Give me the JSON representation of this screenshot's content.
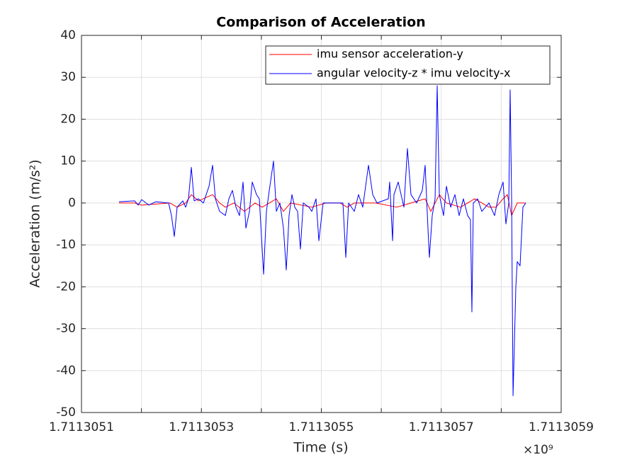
{
  "chart_data": {
    "type": "line",
    "title": "Comparison of Acceleration",
    "xlabel": "Time (s)",
    "ylabel": "Acceleration (m/s²)",
    "x_exponent": "×10⁹",
    "xlim": [
      1.7113051,
      1.7113059
    ],
    "xticks": [
      1.7113051,
      {
        "value": 1.7113052
      },
      1.7113053,
      {
        "value": 1.7113054
      },
      1.7113055,
      {
        "value": 1.7113056
      },
      1.7113057,
      {
        "value": 1.7113058
      },
      1.7113059
    ],
    "ylim": [
      -50,
      40
    ],
    "yticks": [
      -50,
      -40,
      -30,
      -20,
      -10,
      0,
      10,
      20,
      30,
      40
    ],
    "grid": true,
    "legend": "upper right",
    "series": [
      {
        "name": "imu sensor acceleration-y",
        "color": "#ff0000",
        "x": [
          1.7113051626,
          1.7113051886,
          1.7113052004,
          1.7113052477,
          1.7113052595,
          1.7113052737,
          1.7113052832,
          1.711305295,
          1.7113053186,
          1.7113053304,
          1.7113053399,
          1.7113053541,
          1.7113053718,
          1.7113053895,
          1.7113054013,
          1.7113054132,
          1.711305425,
          1.7113054368,
          1.7113054486,
          1.7113054841,
          1.7113055077,
          1.7113055313,
          1.7113055431,
          1.711305555,
          1.7113055904,
          1.7113056259,
          1.7113056495,
          1.7113056731,
          1.7113056826,
          1.7113056968,
          1.7113057086,
          1.7113057322,
          1.7113057558,
          1.7113057795,
          1.7113057913,
          1.7113058031,
          1.7113058102,
          1.7113058173,
          1.7113058267,
          1.7113058409
        ],
        "values": [
          0,
          0,
          -0.5,
          0,
          -1,
          0,
          2,
          0.5,
          2,
          0,
          -1,
          0,
          -2,
          0,
          -1,
          0,
          1,
          -2,
          0,
          -1,
          0,
          0,
          -1,
          0,
          0,
          -1,
          0,
          1,
          -2,
          2,
          0,
          -1,
          1,
          -1,
          -1,
          1,
          2,
          -3,
          0,
          0
        ]
      },
      {
        "name": "angular velocity-z * imu velocity-x",
        "color": "#0000ff",
        "x": [
          1.7113051626,
          1.7113051886,
          1.7113051945,
          1.7113052004,
          1.7113052123,
          1.7113052241,
          1.7113052453,
          1.7113052501,
          1.7113052548,
          1.7113052595,
          1.711305269,
          1.7113052737,
          1.7113052784,
          1.7113052832,
          1.7113052879,
          1.711305295,
          1.7113053033,
          1.7113053127,
          1.7113053186,
          1.7113053233,
          1.7113053304,
          1.7113053399,
          1.7113053458,
          1.7113053517,
          1.7113053576,
          1.7113053635,
          1.7113053694,
          1.7113053742,
          1.7113053801,
          1.7113053848,
          1.7113053919,
          1.7113053966,
          1.7113054037,
          1.7113054084,
          1.7113054132,
          1.7113054202,
          1.711305425,
          1.7113054309,
          1.7113054368,
          1.7113054415,
          1.7113054462,
          1.711305451,
          1.7113054557,
          1.7113054604,
          1.7113054651,
          1.7113054699,
          1.7113054793,
          1.7113054841,
          1.7113054911,
          1.7113054959,
          1.711305503,
          1.711305536,
          1.7113055408,
          1.7113055455,
          1.711305555,
          1.711305562,
          1.7113055691,
          1.7113055786,
          1.7113055857,
          1.7113055928,
          1.7113056117,
          1.711305614,
          1.7113056188,
          1.7113056211,
          1.7113056282,
          1.7113056377,
          1.7113056436,
          1.7113056495,
          1.7113056589,
          1.7113056684,
          1.7113056731,
          1.7113056778,
          1.7113056802,
          1.7113056849,
          1.7113056897,
          1.7113056932,
          1.7113056968,
          1.7113057038,
          1.7113057086,
          1.7113057157,
          1.7113057228,
          1.7113057298,
          1.7113057369,
          1.711305744,
          1.7113057487,
          1.7113057511,
          1.7113057535,
          1.7113057606,
          1.7113057677,
          1.7113057795,
          1.7113057889,
          1.711305796,
          1.7113058031,
          1.7113058078,
          1.7113058126,
          1.7113058149,
          1.7113058173,
          1.7113058197,
          1.7113058244,
          1.7113058267,
          1.7113058314,
          1.7113058362,
          1.7113058409
        ],
        "values": [
          0.3,
          0.5,
          -0.5,
          0.8,
          -0.5,
          0.3,
          0,
          -3,
          -8,
          -1,
          0.5,
          -1,
          1,
          8.5,
          0.5,
          1,
          0,
          4,
          9,
          1,
          -2,
          -3,
          1,
          3,
          -1,
          -3,
          5,
          -6,
          -2,
          5,
          2,
          1,
          -17,
          -2,
          3,
          10,
          -2,
          0,
          -6,
          -16,
          -3,
          2,
          -1,
          -2,
          -11,
          0,
          -1,
          -2,
          1,
          -9,
          0,
          0,
          -13,
          0,
          -2,
          2,
          -1,
          9,
          2,
          0,
          1,
          5,
          -9,
          2,
          5,
          -1,
          13,
          2,
          0,
          3,
          9,
          -6,
          -13,
          -3,
          1,
          28,
          2,
          -3,
          4,
          -1,
          2,
          -3,
          1,
          -3,
          -4,
          -26,
          0,
          1,
          -2,
          0,
          -3,
          2,
          5,
          -5,
          0,
          27,
          1,
          -46,
          -20,
          -14,
          -15,
          -1,
          0
        ]
      }
    ]
  }
}
